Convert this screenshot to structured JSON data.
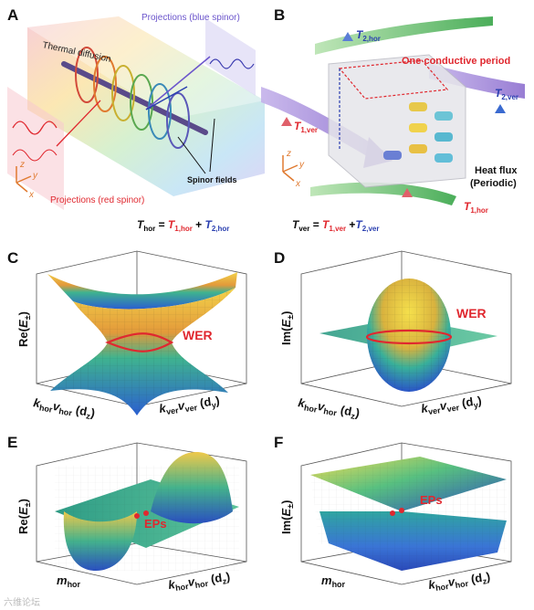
{
  "panels": {
    "A": {
      "letter": "A",
      "thermal_diffusion": "Thermal diffusion",
      "projections_blue": "Projections (blue spinor)",
      "projections_red": "Projections (red spinor)",
      "spinor_fields": "Spinor fields",
      "axes": {
        "z": "z",
        "y": "y",
        "x": "x"
      }
    },
    "B": {
      "letter": "B",
      "conductive_period": "One conductive period",
      "heat_flux": "Heat flux",
      "heat_flux_sub": "(Periodic)",
      "axes": {
        "z": "z",
        "y": "y",
        "x": "x"
      }
    },
    "C": {
      "letter": "C",
      "wer": "WER"
    },
    "D": {
      "letter": "D",
      "wer": "WER"
    },
    "E": {
      "letter": "E",
      "eps": "EPs"
    },
    "F": {
      "letter": "F",
      "eps": "EPs"
    }
  },
  "equations": {
    "t_hor": {
      "lhs": "T",
      "lhs_sub": "hor",
      "eq": " = ",
      "t1": "T",
      "t1_sub": "1,hor",
      "plus": " + ",
      "t2": "T",
      "t2_sub": "2,hor"
    },
    "t_ver": {
      "lhs": "T",
      "lhs_sub": "ver",
      "eq": " = ",
      "t1": "T",
      "t1_sub": "1,ver",
      "plus": " +",
      "t2": "T",
      "t2_sub": "2,ver"
    }
  },
  "labels_b": {
    "t2hor": {
      "t": "T",
      "sub": "2,hor"
    },
    "t2ver": {
      "t": "T",
      "sub": "2,ver"
    },
    "t1ver": {
      "t": "T",
      "sub": "1,ver"
    },
    "t1hor": {
      "t": "T",
      "sub": "1,hor"
    }
  },
  "axes_labels": {
    "re": {
      "pre": "Re(",
      "e": "E",
      "sub": "±",
      "post": ")"
    },
    "im": {
      "pre": "Im(",
      "e": "E",
      "sub": "±",
      "post": ")"
    },
    "khor_dz": {
      "k": "k",
      "ksub": "hor",
      "v": "v",
      "vsub": "hor",
      "d": " (d",
      "dsub": "z",
      "close": ")"
    },
    "kver_dy": {
      "k": "k",
      "ksub": "ver",
      "v": "v",
      "vsub": "ver",
      "d": " (d",
      "dsub": "y",
      "close": ")"
    },
    "mhor": {
      "m": "m",
      "msub": "hor"
    }
  },
  "colors": {
    "red": "#e0282f",
    "blue": "#2a3fb0",
    "green_sheet": "#3aa98f",
    "violet": "#a98ad8"
  },
  "watermark": "六维论坛"
}
